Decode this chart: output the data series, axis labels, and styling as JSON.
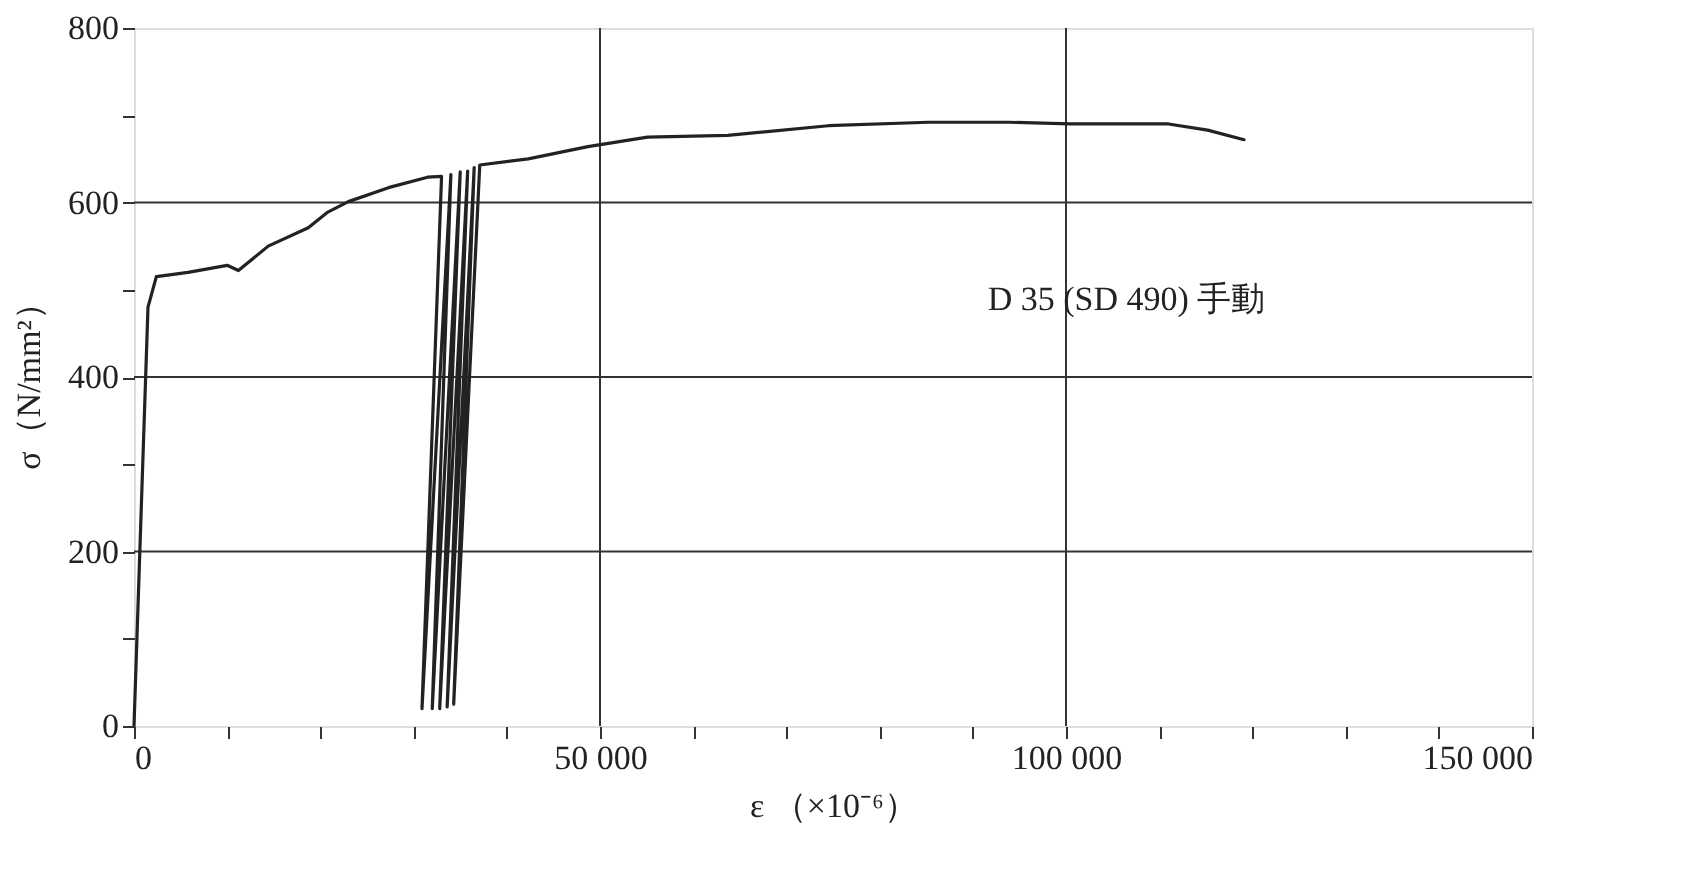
{
  "chart_data": {
    "type": "line",
    "xlabel": "ε （×10⁻⁶）",
    "ylabel": "σ（N/mm²）",
    "annotations": [
      "D 35 (SD 490) 手動"
    ],
    "series": [
      {
        "color": "#222222",
        "x": [
          0,
          1500,
          2400,
          5800,
          10000,
          11200,
          14400,
          18700,
          20800,
          23000,
          27300,
          31500,
          33000,
          30900,
          34000,
          32000,
          35000,
          32800,
          35800,
          33600,
          36500,
          34300,
          37100,
          42300,
          48700,
          55100,
          63700,
          74500,
          85200,
          93800,
          100400,
          111000,
          115200,
          119100
        ],
        "values": [
          0,
          480,
          515,
          520,
          528,
          522,
          550,
          571,
          589,
          601,
          617,
          629,
          630,
          20,
          632,
          20,
          635,
          20,
          636,
          22,
          640,
          25,
          643,
          650,
          664,
          675,
          677,
          688,
          692,
          692,
          690,
          690,
          683,
          672
        ]
      }
    ],
    "xlim": [
      0,
      150000
    ],
    "ylim": [
      0,
      800
    ],
    "xticks": [
      0,
      {
        "value": 10000,
        "label": null
      },
      {
        "value": 20000,
        "label": null
      },
      {
        "value": 30000,
        "label": null
      },
      {
        "value": 40000,
        "label": null
      },
      {
        "value": 50000,
        "label": "50 000"
      },
      {
        "value": 60000,
        "label": null
      },
      {
        "value": 70000,
        "label": null
      },
      {
        "value": 80000,
        "label": null
      },
      {
        "value": 90000,
        "label": null
      },
      {
        "value": 100000,
        "label": "100 000"
      },
      {
        "value": 110000,
        "label": null
      },
      {
        "value": 120000,
        "label": null
      },
      {
        "value": 130000,
        "label": null
      },
      {
        "value": 140000,
        "label": null
      },
      {
        "value": 150000,
        "label": "150 000"
      }
    ],
    "yticks": [
      0,
      {
        "value": 100,
        "label": null
      },
      200,
      {
        "value": 300,
        "label": null
      },
      400,
      {
        "value": 500,
        "label": null
      },
      600,
      {
        "value": 700,
        "label": null
      },
      800
    ],
    "grid": true,
    "marker": "none",
    "line_style": "solid"
  }
}
